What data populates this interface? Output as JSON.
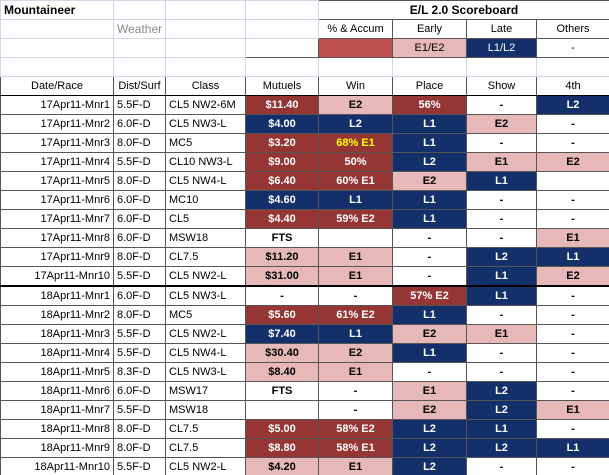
{
  "header": {
    "title": "Mountaineer",
    "scoreboard": "E/L 2.0 Scoreboard",
    "weather": "Weather",
    "legend": [
      {
        "label": "% & Accum",
        "fill": "#c0504d"
      },
      {
        "label": "Early",
        "text": "E1/E2",
        "fill": "#e6b8b7"
      },
      {
        "label": "Late",
        "text": "L1/L2",
        "fill": "#14306b"
      },
      {
        "label": "Others",
        "text": "-"
      }
    ]
  },
  "table": {
    "columns": [
      "Date/Race",
      "Dist/Surf",
      "Class",
      "Mutuels",
      "Win",
      "Place",
      "Show",
      "4th"
    ],
    "rows": [
      {
        "race": "17Apr11-Mnr1",
        "dist": "5.5F-D",
        "class": "CL5 NW2-6M",
        "cells": [
          {
            "text": "$11.40",
            "fill": "#963634"
          },
          {
            "text": "E2",
            "fill": "#e6b8b7"
          },
          {
            "text": "56%",
            "fill": "#963634"
          },
          {
            "text": "-"
          },
          {
            "text": "L2",
            "fill": "#14306b"
          }
        ]
      },
      {
        "race": "17Apr11-Mnr2",
        "dist": "6.0F-D",
        "class": "CL5 NW3-L",
        "cells": [
          {
            "text": "$4.00",
            "fill": "#14306b"
          },
          {
            "text": "L2",
            "fill": "#14306b"
          },
          {
            "text": "L1",
            "fill": "#14306b"
          },
          {
            "text": "E2",
            "fill": "#e6b8b7"
          },
          {
            "text": "-"
          }
        ]
      },
      {
        "race": "17Apr11-Mnr3",
        "dist": "8.0F-D",
        "class": "MC5",
        "cells": [
          {
            "text": "$3.20",
            "fill": "#963634"
          },
          {
            "text": "68% E1",
            "fill": "#963634",
            "color": "#ffff00"
          },
          {
            "text": "L1",
            "fill": "#14306b"
          },
          {
            "text": "-"
          },
          {
            "text": "-"
          }
        ]
      },
      {
        "race": "17Apr11-Mnr4",
        "dist": "5.5F-D",
        "class": "CL10 NW3-L",
        "cells": [
          {
            "text": "$9.00",
            "fill": "#963634"
          },
          {
            "text": "50%",
            "fill": "#963634"
          },
          {
            "text": "L2",
            "fill": "#14306b"
          },
          {
            "text": "E1",
            "fill": "#e6b8b7"
          },
          {
            "text": "E2",
            "fill": "#e6b8b7"
          }
        ]
      },
      {
        "race": "17Apr11-Mnr5",
        "dist": "8.0F-D",
        "class": "CL5 NW4-L",
        "cells": [
          {
            "text": "$6.40",
            "fill": "#963634"
          },
          {
            "text": "60% E1",
            "fill": "#963634"
          },
          {
            "text": "E2",
            "fill": "#e6b8b7"
          },
          {
            "text": "L1",
            "fill": "#14306b"
          },
          null
        ]
      },
      {
        "race": "17Apr11-Mnr6",
        "dist": "6.0F-D",
        "class": "MC10",
        "cells": [
          {
            "text": "$4.60",
            "fill": "#14306b"
          },
          {
            "text": "L1",
            "fill": "#14306b"
          },
          {
            "text": "L1",
            "fill": "#14306b"
          },
          {
            "text": "-"
          },
          {
            "text": "-"
          }
        ]
      },
      {
        "race": "17Apr11-Mnr7",
        "dist": "6.0F-D",
        "class": "CL5",
        "cells": [
          {
            "text": "$4.40",
            "fill": "#963634"
          },
          {
            "text": "59% E2",
            "fill": "#963634"
          },
          {
            "text": "L1",
            "fill": "#14306b"
          },
          {
            "text": "-"
          },
          {
            "text": "-"
          }
        ]
      },
      {
        "race": "17Apr11-Mnr8",
        "dist": "6.0F-D",
        "class": "MSW18",
        "cells": [
          {
            "text": "FTS"
          },
          null,
          {
            "text": "-"
          },
          {
            "text": "-"
          },
          {
            "text": "E1",
            "fill": "#e6b8b7"
          }
        ]
      },
      {
        "race": "17Apr11-Mnr9",
        "dist": "8.0F-D",
        "class": "CL7.5",
        "cells": [
          {
            "text": "$11.20",
            "fill": "#e6b8b7"
          },
          {
            "text": "E1",
            "fill": "#e6b8b7"
          },
          {
            "text": "-"
          },
          {
            "text": "L2",
            "fill": "#14306b"
          },
          {
            "text": "L1",
            "fill": "#14306b"
          }
        ]
      },
      {
        "race": "17Apr11-Mnr10",
        "dist": "5.5F-D",
        "class": "CL5 NW2-L",
        "cells": [
          {
            "text": "$31.00",
            "fill": "#e6b8b7"
          },
          {
            "text": "E1",
            "fill": "#e6b8b7"
          },
          {
            "text": "-"
          },
          {
            "text": "L1",
            "fill": "#14306b"
          },
          {
            "text": "E2",
            "fill": "#e6b8b7"
          }
        ]
      },
      {
        "race": "18Apr11-Mnr1",
        "dist": "6.0F-D",
        "class": "CL5 NW3-L",
        "cells": [
          {
            "text": "-"
          },
          {
            "text": "-"
          },
          {
            "text": "57% E2",
            "fill": "#963634"
          },
          {
            "text": "L1",
            "fill": "#14306b"
          },
          {
            "text": "-"
          }
        ]
      },
      {
        "race": "18Apr11-Mnr2",
        "dist": "8.0F-D",
        "class": "MC5",
        "cells": [
          {
            "text": "$5.60",
            "fill": "#963634"
          },
          {
            "text": "61% E2",
            "fill": "#963634"
          },
          {
            "text": "L1",
            "fill": "#14306b"
          },
          {
            "text": "-"
          },
          {
            "text": "-"
          }
        ]
      },
      {
        "race": "18Apr11-Mnr3",
        "dist": "5.5F-D",
        "class": "CL5 NW2-L",
        "cells": [
          {
            "text": "$7.40",
            "fill": "#14306b"
          },
          {
            "text": "L1",
            "fill": "#14306b"
          },
          {
            "text": "E2",
            "fill": "#e6b8b7"
          },
          {
            "text": "E1",
            "fill": "#e6b8b7"
          },
          {
            "text": "-"
          }
        ]
      },
      {
        "race": "18Apr11-Mnr4",
        "dist": "5.5F-D",
        "class": "CL5 NW4-L",
        "cells": [
          {
            "text": "$30.40",
            "fill": "#e6b8b7"
          },
          {
            "text": "E2",
            "fill": "#e6b8b7"
          },
          {
            "text": "L1",
            "fill": "#14306b"
          },
          {
            "text": "-"
          },
          {
            "text": "-"
          }
        ]
      },
      {
        "race": "18Apr11-Mnr5",
        "dist": "8.3F-D",
        "class": "CL5 NW3-L",
        "cells": [
          {
            "text": "$8.40",
            "fill": "#e6b8b7"
          },
          {
            "text": "E1",
            "fill": "#e6b8b7"
          },
          {
            "text": "-"
          },
          {
            "text": "-"
          },
          {
            "text": "-"
          }
        ]
      },
      {
        "race": "18Apr11-Mnr6",
        "dist": "6.0F-D",
        "class": "MSW17",
        "cells": [
          {
            "text": "FTS"
          },
          {
            "text": "-"
          },
          {
            "text": "E1",
            "fill": "#e6b8b7"
          },
          {
            "text": "L2",
            "fill": "#14306b"
          },
          {
            "text": "-"
          }
        ]
      },
      {
        "race": "18Apr11-Mnr7",
        "dist": "5.5F-D",
        "class": "MSW18",
        "cells": [
          null,
          {
            "text": "-"
          },
          {
            "text": "E2",
            "fill": "#e6b8b7"
          },
          {
            "text": "L2",
            "fill": "#14306b"
          },
          {
            "text": "E1",
            "fill": "#e6b8b7"
          }
        ]
      },
      {
        "race": "18Apr11-Mnr8",
        "dist": "8.0F-D",
        "class": "CL7.5",
        "cells": [
          {
            "text": "$5.00",
            "fill": "#963634"
          },
          {
            "text": "58% E2",
            "fill": "#963634"
          },
          {
            "text": "L2",
            "fill": "#14306b"
          },
          {
            "text": "L1",
            "fill": "#14306b"
          },
          {
            "text": "-"
          }
        ]
      },
      {
        "race": "18Apr11-Mnr9",
        "dist": "8.0F-D",
        "class": "CL7.5",
        "cells": [
          {
            "text": "$8.80",
            "fill": "#963634"
          },
          {
            "text": "58% E1",
            "fill": "#963634"
          },
          {
            "text": "L2",
            "fill": "#14306b"
          },
          {
            "text": "L2",
            "fill": "#14306b"
          },
          {
            "text": "L1",
            "fill": "#14306b"
          }
        ]
      },
      {
        "race": "18Apr11-Mnr10",
        "dist": "5.5F-D",
        "class": "CL5 NW2-L",
        "cells": [
          {
            "text": "$4.20",
            "fill": "#e6b8b7"
          },
          {
            "text": "E1",
            "fill": "#e6b8b7"
          },
          {
            "text": "L2",
            "fill": "#14306b"
          },
          {
            "text": "-"
          },
          {
            "text": "-"
          }
        ]
      }
    ]
  }
}
